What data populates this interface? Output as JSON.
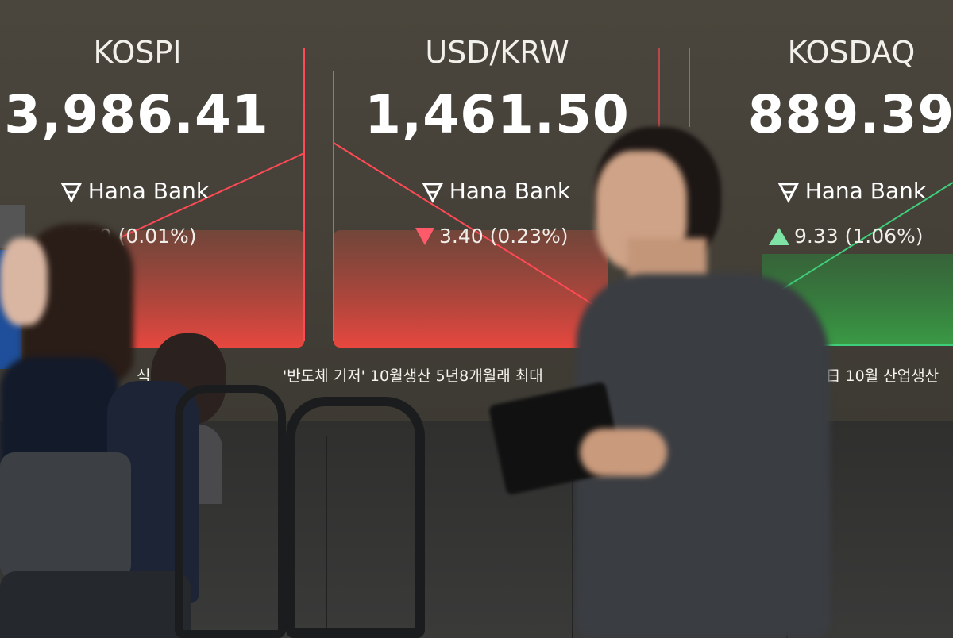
{
  "board": {
    "indices": [
      {
        "name": "KOSPI",
        "value": "3,986.41",
        "brand": "Hana Bank",
        "direction": "down",
        "change": "0.50 (0.01%)",
        "color": "#ff4a55"
      },
      {
        "name": "USD/KRW",
        "value": "1,461.50",
        "brand": "Hana Bank",
        "direction": "down",
        "change": "3.40 (0.23%)",
        "color": "#ff4a55"
      },
      {
        "name": "KOSDAQ",
        "value": "889.39",
        "brand": "Hana Bank",
        "direction": "up",
        "change": "9.33 (1.06%)",
        "color": "#3fcf7a"
      }
    ],
    "ticker": {
      "left": "식",
      "center": "'반도체 기저' 10월생산 5년8개월래 최대",
      "right": "*日 10월 산업생산"
    }
  },
  "colors": {
    "board_bg": "#47433b",
    "down": "#ff4a55",
    "up": "#3fcf7a"
  }
}
